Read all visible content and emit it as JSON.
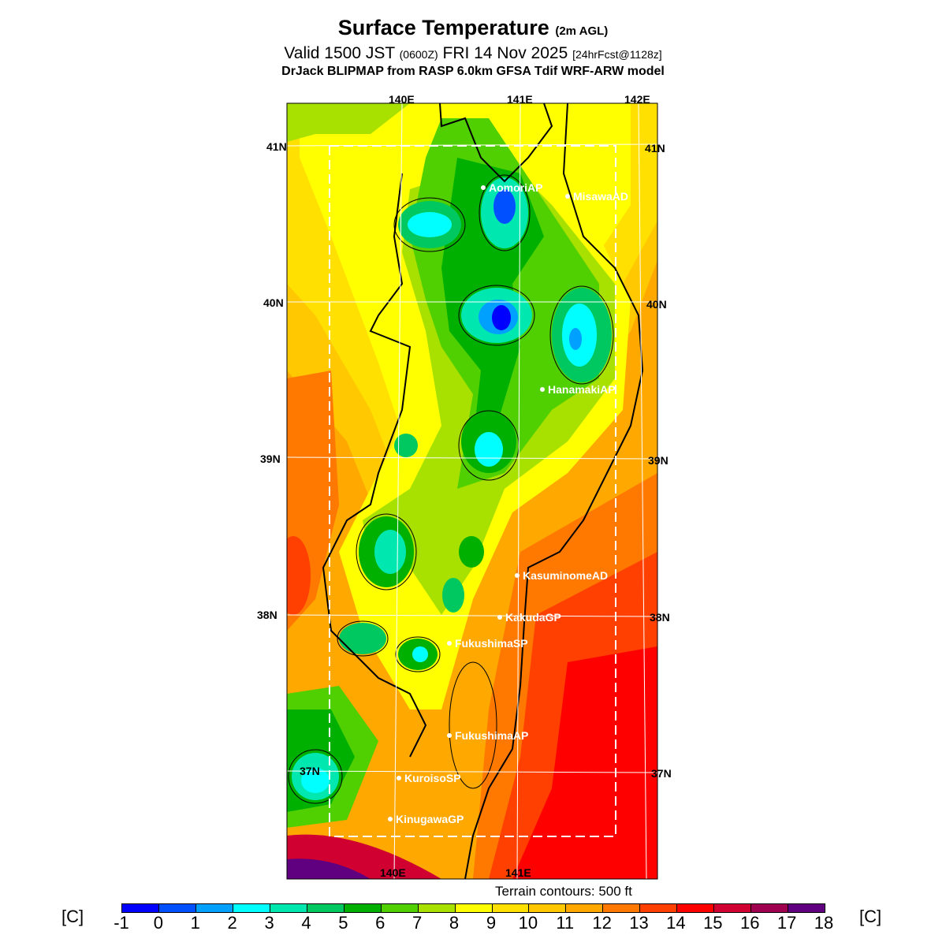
{
  "title": {
    "main": "Surface Temperature",
    "main_suffix": "(2m AGL)",
    "valid_prefix": "Valid 1500 JST",
    "valid_utc": "(0600Z)",
    "valid_date": "FRI 14 Nov 2025",
    "forecast": "[24hrFcst@1128z]",
    "model": "DrJack BLIPMAP from RASP 6.0km GFSA Tdif WRF-ARW model"
  },
  "grid": {
    "lon_top": [
      "140E",
      "141E",
      "142E"
    ],
    "lon_bottom": [
      "140E",
      "141E"
    ],
    "lat_left": [
      "41N",
      "40N",
      "39N",
      "38N",
      "37N"
    ],
    "lat_right": [
      "41N",
      "40N",
      "39N",
      "38N",
      "37N"
    ]
  },
  "stations": [
    "AomoriAP",
    "MisawaAD",
    "HanamakiAP",
    "KasuminomeAD",
    "KakudaGP",
    "FukushimaSP",
    "FukushimaAP",
    "KuroisoSP",
    "KinugawaGP"
  ],
  "terrain_note": "Terrain contours: 500 ft",
  "colorbar": {
    "unit_left": "[C]",
    "unit_right": "[C]",
    "labels": [
      "-1",
      "0",
      "1",
      "2",
      "3",
      "4",
      "5",
      "6",
      "7",
      "8",
      "9",
      "10",
      "11",
      "12",
      "13",
      "14",
      "15",
      "16",
      "17",
      "18"
    ],
    "colors": [
      "#0000ff",
      "#0050ff",
      "#00a0ff",
      "#00ffff",
      "#00e8b0",
      "#00c860",
      "#00b000",
      "#50d000",
      "#a8e000",
      "#ffff00",
      "#ffe000",
      "#ffc800",
      "#ffa800",
      "#ff7800",
      "#ff4000",
      "#ff0000",
      "#d00030",
      "#a00050",
      "#600080"
    ]
  }
}
